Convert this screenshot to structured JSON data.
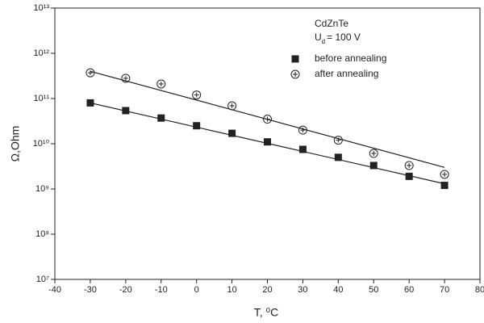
{
  "chart_data": {
    "type": "scatter",
    "x_label": "T, ⁰C",
    "y_label": "Ω,Ohm",
    "y_log": true,
    "grid": false,
    "legend": "upper right",
    "annotation": {
      "sample": "CdZnTe",
      "voltage": [
        "U",
        "d",
        "= 100 V"
      ]
    },
    "xlim": [
      -40,
      80
    ],
    "xticks": [
      -40,
      -30,
      -20,
      -10,
      0,
      10,
      20,
      30,
      40,
      50,
      60,
      70,
      80
    ],
    "ylim": [
      10000000,
      10000000000000
    ],
    "yticks": [
      {
        "value": 10000000,
        "label": "10⁷"
      },
      {
        "value": 100000000,
        "label": "10⁸"
      },
      {
        "value": 1000000000,
        "label": "10⁹"
      },
      {
        "value": 10000000000,
        "label": "10¹⁰"
      },
      {
        "value": 100000000000,
        "label": "10¹¹"
      },
      {
        "value": 1000000000000,
        "label": "10¹²"
      },
      {
        "value": 10000000000000,
        "label": "10¹³"
      }
    ],
    "x": [
      -30,
      -20,
      -10,
      0,
      10,
      20,
      30,
      40,
      50,
      60,
      70
    ],
    "series": [
      {
        "name": "before annealing",
        "color": "#222222",
        "marker": "square",
        "values": [
          80000000000,
          54000000000,
          37000000000,
          25000000000,
          17000000000,
          11000000000,
          7500000000,
          5000000000,
          3300000000,
          1900000000,
          1200000000
        ],
        "fit": {
          "x": [
            -30,
            70
          ],
          "values": [
            80000000000,
            1300000000
          ]
        }
      },
      {
        "name": "after annealing",
        "color": "#222222",
        "marker": "circle",
        "values": [
          370000000000,
          280000000000,
          210000000000,
          120000000000,
          69000000000,
          35000000000,
          20000000000,
          12000000000,
          6100000000,
          3300000000,
          2100000000
        ],
        "fit": {
          "x": [
            -30,
            70
          ],
          "values": [
            400000000000,
            3000000000
          ]
        }
      }
    ]
  }
}
